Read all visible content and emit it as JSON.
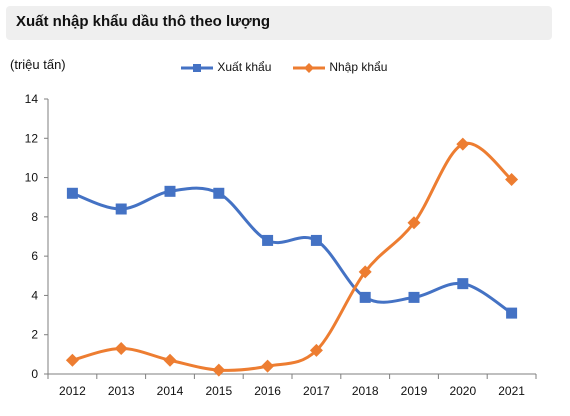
{
  "chart_data": {
    "type": "line",
    "title": "Xuất nhập khẩu dầu thô theo lượng",
    "ylabel": "(triệu tấn)",
    "xlabel": "",
    "categories": [
      "2012",
      "2013",
      "2014",
      "2015",
      "2016",
      "2017",
      "2018",
      "2019",
      "2020",
      "2021"
    ],
    "ylim": [
      0,
      14
    ],
    "yticks": [
      "0",
      "2",
      "4",
      "6",
      "8",
      "10",
      "12",
      "14"
    ],
    "legend_position": "top",
    "grid": false,
    "series": [
      {
        "name": "Xuất khẩu",
        "color": "#4472C4",
        "marker": "square",
        "values": [
          9.2,
          8.4,
          9.3,
          9.2,
          6.8,
          6.8,
          3.9,
          3.9,
          4.6,
          3.1
        ]
      },
      {
        "name": "Nhập khẩu",
        "color": "#ED7D31",
        "marker": "diamond",
        "values": [
          0.7,
          1.3,
          0.7,
          0.2,
          0.4,
          1.2,
          5.2,
          7.7,
          11.7,
          9.9
        ]
      }
    ]
  }
}
